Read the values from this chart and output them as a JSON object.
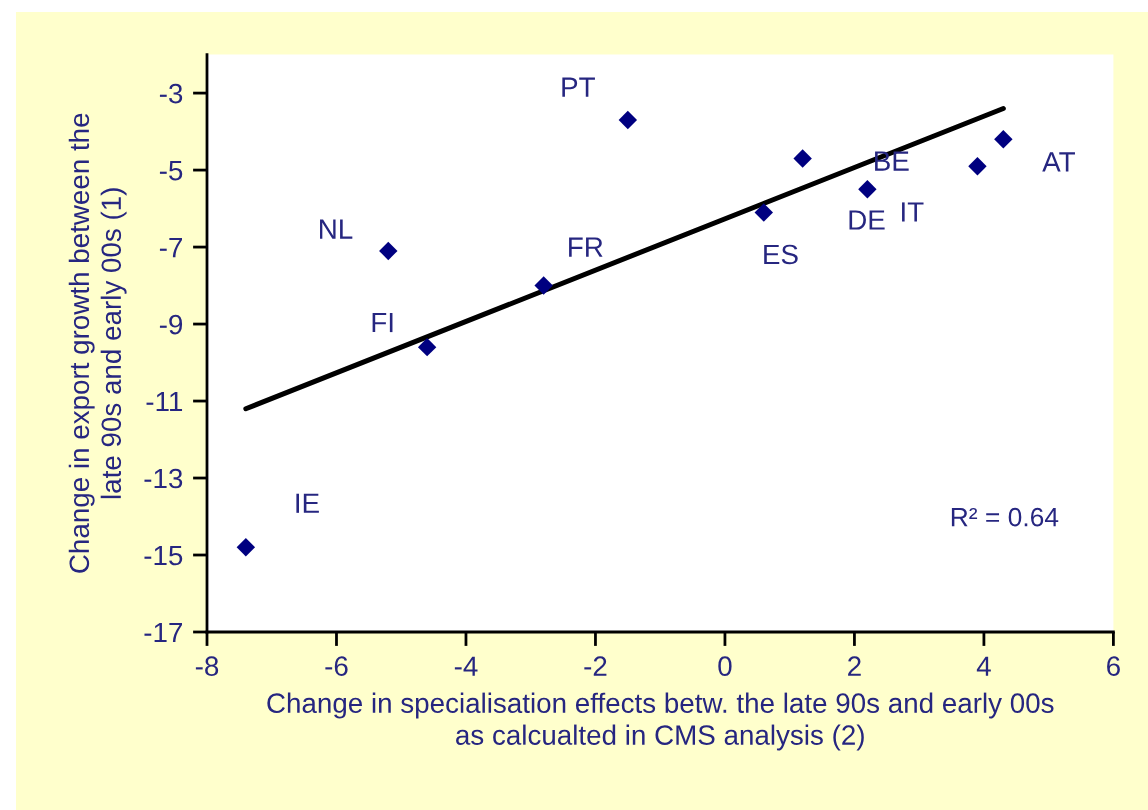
{
  "chart_data": {
    "type": "scatter",
    "xlabel": "Change in specialisation effects betw. the late 90s and early 00s\nas calcualted in CMS analysis (2)",
    "ylabel": "Change in export growth between the\nlate 90s and early 00s (1)",
    "xlim": [
      -8,
      6
    ],
    "xticks": [
      -8,
      -6,
      -4,
      -2,
      0,
      2,
      4,
      6
    ],
    "ylim": [
      -17,
      -2
    ],
    "yticks": [
      -17,
      -15,
      -13,
      -11,
      -9,
      -7,
      -5,
      -3
    ],
    "grid": false,
    "marker": "diamond",
    "series": [
      {
        "color": "#000080",
        "x": [
          -5.2,
          -4.6,
          -2.8,
          -1.5,
          1.2,
          0.6,
          2.2,
          3.9,
          4.3,
          -7.4
        ],
        "values": [
          -7.1,
          -9.6,
          -8.0,
          -3.7,
          -4.7,
          -6.1,
          -5.5,
          -4.9,
          -4.2,
          -14.8
        ]
      },
      {
        "type": "line",
        "color": "#000000",
        "marker": "none",
        "x": [
          -7.4,
          4.3
        ],
        "values": [
          -11.2,
          -3.4
        ]
      }
    ],
    "annotations": [
      {
        "text": "NL",
        "x": -5.2,
        "y": -7.1
      },
      {
        "text": "FI",
        "x": -4.6,
        "y": -9.6
      },
      {
        "text": "FR",
        "x": -2.8,
        "y": -8.0
      },
      {
        "text": "PT",
        "x": -1.5,
        "y": -3.7
      },
      {
        "text": "DE",
        "x": 1.2,
        "y": -4.7
      },
      {
        "text": "ES",
        "x": 0.6,
        "y": -6.1
      },
      {
        "text": "IT",
        "x": 2.2,
        "y": -5.5
      },
      {
        "text": "BE",
        "x": 3.9,
        "y": -4.9
      },
      {
        "text": "AT",
        "x": 4.3,
        "y": -4.2
      },
      {
        "text": "IE",
        "x": -7.4,
        "y": -14.8
      },
      "R² = 0.64"
    ]
  }
}
